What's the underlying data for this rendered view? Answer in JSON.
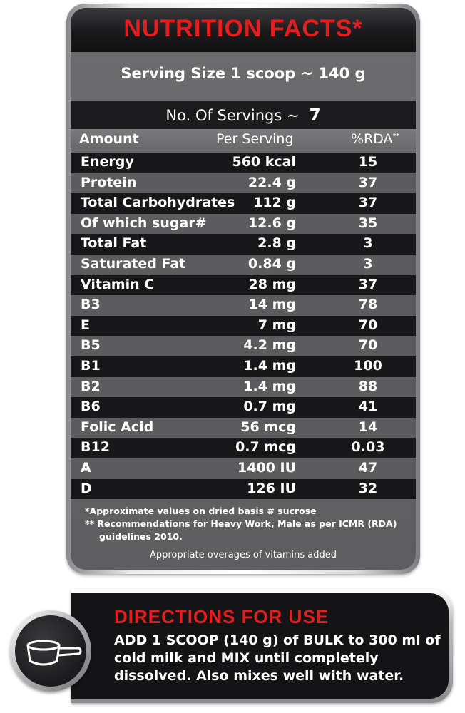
{
  "nutrition": {
    "title": "NUTRITION FACTS*",
    "serving_size": "Serving Size 1 scoop ~ 140 g",
    "servings_label": "No. Of Servings ~",
    "servings_value": "7",
    "headers": {
      "amount": "Amount",
      "per_serving": "Per Serving",
      "rda": "%RDA",
      "rda_mark": "**"
    },
    "rows": [
      {
        "name": "Energy",
        "per_serving": "560 kcal",
        "rda": "15"
      },
      {
        "name": "Protein",
        "per_serving": "22.4 g",
        "rda": "37"
      },
      {
        "name": "Total Carbohydrates",
        "per_serving": "112 g",
        "rda": "37"
      },
      {
        "name": "Of which sugar#",
        "per_serving": "12.6 g",
        "rda": "35"
      },
      {
        "name": "Total Fat",
        "per_serving": "2.8 g",
        "rda": "3"
      },
      {
        "name": "Saturated Fat",
        "per_serving": "0.84 g",
        "rda": "3"
      },
      {
        "name": "Vitamin C",
        "per_serving": "28 mg",
        "rda": "37"
      },
      {
        "name": "B3",
        "per_serving": "14 mg",
        "rda": "78"
      },
      {
        "name": "E",
        "per_serving": "7 mg",
        "rda": "70"
      },
      {
        "name": "B5",
        "per_serving": "4.2 mg",
        "rda": "70"
      },
      {
        "name": "B1",
        "per_serving": "1.4 mg",
        "rda": "100"
      },
      {
        "name": "B2",
        "per_serving": "1.4 mg",
        "rda": "88"
      },
      {
        "name": "B6",
        "per_serving": "0.7 mg",
        "rda": "41"
      },
      {
        "name": "Folic Acid",
        "per_serving": "56 mcg",
        "rda": "14"
      },
      {
        "name": "B12",
        "per_serving": "0.7 mcg",
        "rda": "0.03"
      },
      {
        "name": "A",
        "per_serving": "1400 IU",
        "rda": "47"
      },
      {
        "name": "D",
        "per_serving": "126 IU",
        "rda": "32"
      }
    ],
    "note1": "*Approximate values on dried basis # sucrose",
    "note2": "** Recommendations for Heavy Work, Male as per ICMR (RDA) guidelines 2010.",
    "note3": "Appropriate overages of vitamins added"
  },
  "directions": {
    "title": "DIRECTIONS FOR USE",
    "text": "ADD 1 SCOOP (140 g) of BULK to 300 ml of cold milk and MIX until completely dissolved. Also mixes well with water.",
    "icon": "scoop-icon"
  },
  "colors": {
    "accent_red": "#e41e1e",
    "dark_row": "#18181a",
    "light_row": "#5c5c5e"
  }
}
